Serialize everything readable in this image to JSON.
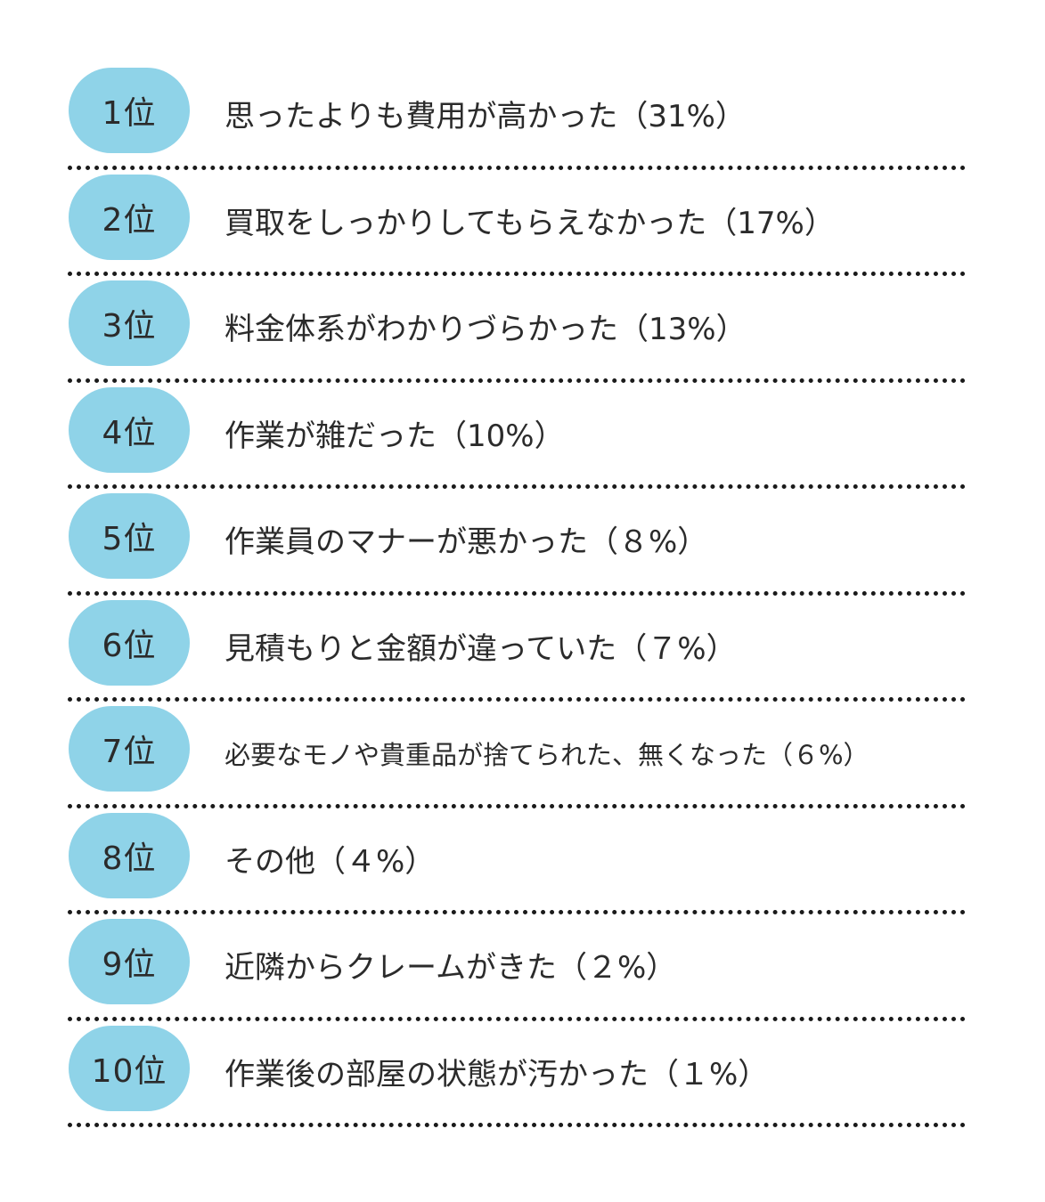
{
  "rankings": [
    {
      "rank": "1位",
      "text": "思ったよりも費用が高かった（31%）"
    },
    {
      "rank": "2位",
      "text": "買取をしっかりしてもらえなかった（17%）"
    },
    {
      "rank": "3位",
      "text": "料金体系がわかりづらかった（13%）"
    },
    {
      "rank": "4位",
      "text": "作業が雑だった（10%）"
    },
    {
      "rank": "5位",
      "text": "作業員のマナーが悪かった（８%）"
    },
    {
      "rank": "6位",
      "text": "見積もりと金額が違っていた（７%）"
    },
    {
      "rank": "7位",
      "text": "必要なモノや貴重品が捨てられた、無くなった（６%）"
    },
    {
      "rank": "8位",
      "text": "その他（４%）"
    },
    {
      "rank": "9位",
      "text": "近隣からクレームがきた（２%）"
    },
    {
      "rank": "10位",
      "text": "作業後の部屋の状態が汚かった（１%）"
    }
  ],
  "colors": {
    "badge": "#8fd3e8",
    "text": "#2b2b2b",
    "divider": "#1a1a1a"
  }
}
